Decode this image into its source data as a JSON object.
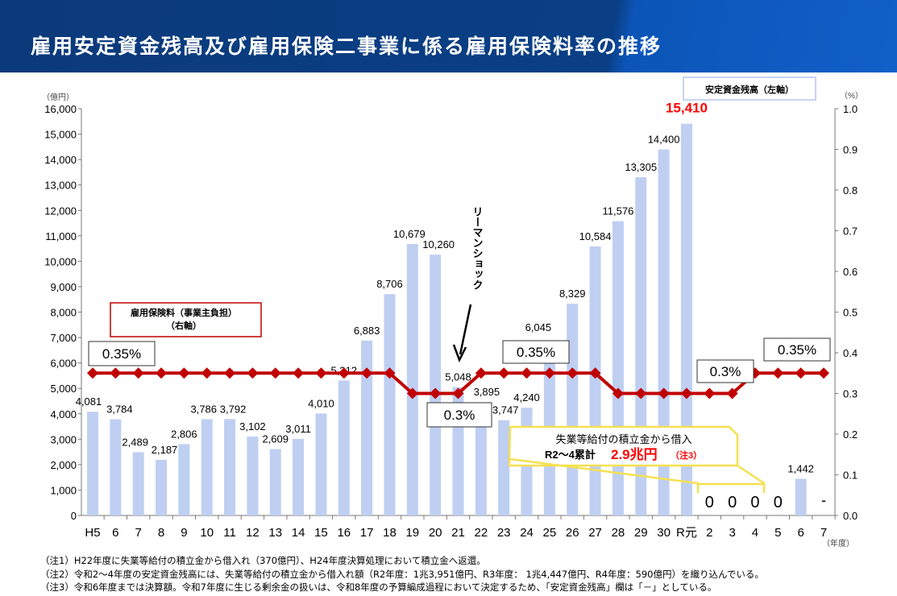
{
  "header": {
    "title": "雇用安定資金残高及び雇用保険二事業に係る雇用保険料率の推移"
  },
  "chart_data": {
    "type": "bar+line",
    "categories": [
      "H5",
      "6",
      "7",
      "8",
      "9",
      "10",
      "11",
      "12",
      "13",
      "14",
      "15",
      "16",
      "17",
      "18",
      "19",
      "20",
      "21",
      "22",
      "23",
      "24",
      "25",
      "26",
      "27",
      "28",
      "29",
      "30",
      "R元",
      "2",
      "3",
      "4",
      "5",
      "6",
      "7"
    ],
    "series": [
      {
        "name": "安定資金残高（左軸）",
        "type": "bar",
        "axis": "left",
        "values": [
          4081,
          3784,
          2489,
          2187,
          2806,
          3786,
          3792,
          3102,
          2609,
          3011,
          4010,
          5312,
          6883,
          8706,
          10679,
          10260,
          5048,
          3895,
          3747,
          4240,
          6045,
          8329,
          10584,
          11576,
          13305,
          14400,
          15410,
          0,
          0,
          0,
          0,
          1442,
          null
        ],
        "labels": [
          "4,081",
          "3,784",
          "2,489",
          "2,187",
          "2,806",
          "3,786",
          "3,792",
          "3,102",
          "2,609",
          "3,011",
          "4,010",
          "5,312",
          "6,883",
          "8,706",
          "10,679",
          "10,260",
          "5,048",
          "3,895",
          "3,747",
          "4,240",
          "6,045",
          "8,329",
          "10,584",
          "11,576",
          "13,305",
          "14,400",
          "15,410",
          "0",
          "0",
          "0",
          "0",
          "1,442",
          "-"
        ]
      },
      {
        "name": "雇用保険料（事業主負担）（右軸）",
        "type": "line",
        "axis": "right",
        "values": [
          0.35,
          0.35,
          0.35,
          0.35,
          0.35,
          0.35,
          0.35,
          0.35,
          0.35,
          0.35,
          0.35,
          0.35,
          0.35,
          0.35,
          0.3,
          0.3,
          0.3,
          0.35,
          0.35,
          0.35,
          0.35,
          0.35,
          0.35,
          0.3,
          0.3,
          0.3,
          0.3,
          0.3,
          0.3,
          0.35,
          0.35,
          0.35,
          0.35
        ]
      }
    ],
    "left_axis": {
      "unit": "（億円）",
      "ylim": [
        0,
        16000
      ],
      "ticks": [
        "0",
        "1,000",
        "2,000",
        "3,000",
        "4,000",
        "5,000",
        "6,000",
        "7,000",
        "8,000",
        "9,000",
        "10,000",
        "11,000",
        "12,000",
        "13,000",
        "14,000",
        "15,000",
        "16,000"
      ]
    },
    "right_axis": {
      "unit": "（%）",
      "ylim": [
        0,
        1.0
      ],
      "ticks": [
        "0.0",
        "0.1",
        "0.2",
        "0.3",
        "0.4",
        "0.5",
        "0.6",
        "0.7",
        "0.8",
        "0.9",
        "1.0"
      ]
    },
    "xlabel": "（年度）",
    "legend": {
      "bar": "安定資金残高（左軸）",
      "line_1": "雇用保険料（事業主負担）",
      "line_2": "（右軸）"
    },
    "rate_labels": [
      "0.35%",
      "0.3%",
      "0.35%",
      "0.3%",
      "0.35%"
    ],
    "annotations": {
      "lehman": "リーマンショック",
      "callout_line1": "失業等給付の積立金から借入",
      "callout_line2": "R2～4累計",
      "callout_amount": "2.9兆円",
      "callout_note": "（注3）"
    },
    "colors": {
      "bar": "#bfcff2",
      "line": "#c00000",
      "highlight": "#ff0000",
      "callout": "#f5e050"
    }
  },
  "notes": [
    "（注1）H22年度に失業等給付の積立金から借入れ（370億円）、H24年度決算処理において積立金へ返還。",
    "（注2）令和2～4年度の安定資金残高には、失業等給付の積立金から借入れ額（R2年度：1兆3,951億円、R3年度： 1兆4,447億円、R4年度：590億円）を織り込んでいる。",
    "（注3）令和6年度までは決算額。令和7年度に生じる剰余金の扱いは、令和8年度の予算編成過程において決定するため、「安定資金残高」欄は「－」としている。"
  ]
}
